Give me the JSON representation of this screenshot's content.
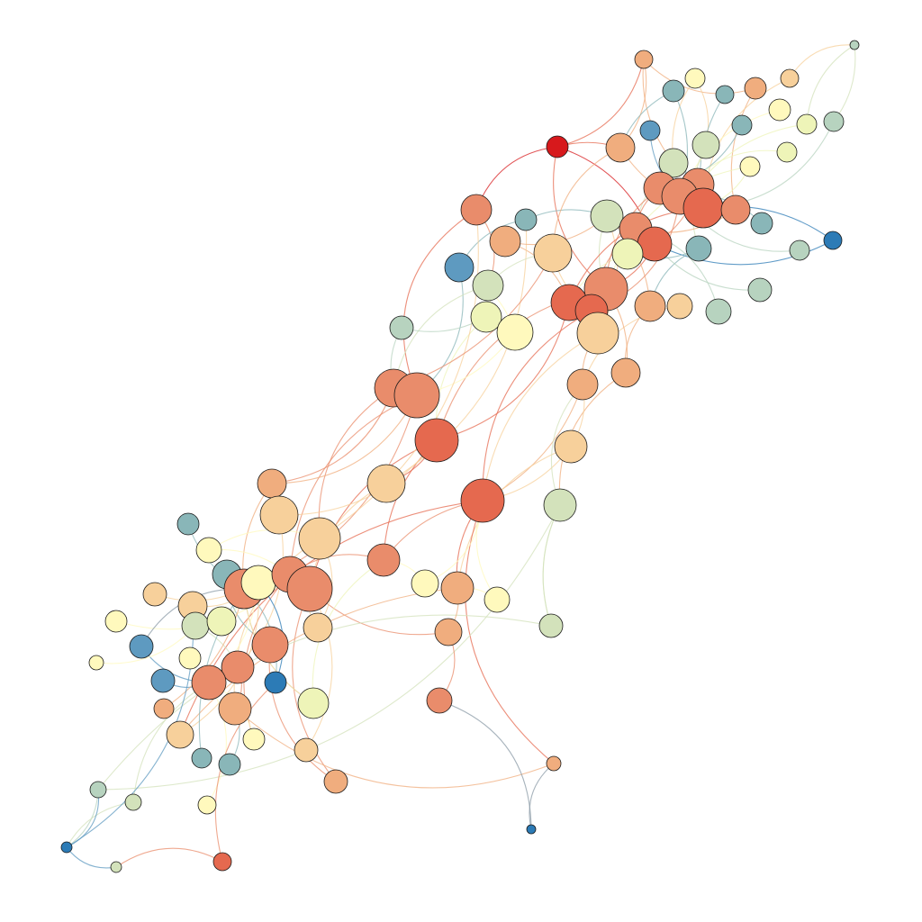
{
  "diagram": {
    "type": "network-graph",
    "background": "#ffffff",
    "palette": {
      "red": "#d7191c",
      "red_orange": "#e5694f",
      "salmon": "#e98c6b",
      "light_orange": "#f0ad7e",
      "peach": "#f7d09b",
      "cream": "#fff9bd",
      "pale_lime": "#eef4b8",
      "light_sage": "#d3e2bb",
      "sage": "#b7d3bf",
      "teal_gray": "#89b6b8",
      "steel_blue": "#5e9ac0",
      "blue": "#2c7bb6",
      "gray_edge": "#8a9aa6"
    }
  }
}
